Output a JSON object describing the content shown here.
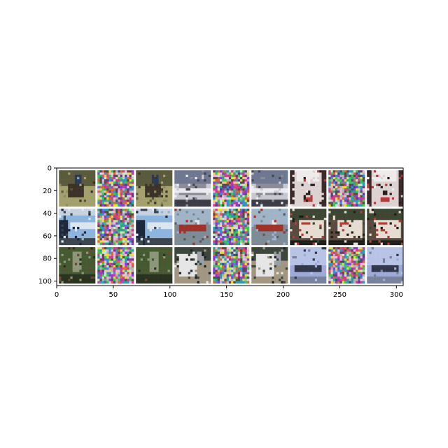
{
  "chart_data": {
    "type": "image_grid",
    "title": "",
    "xlabel": "",
    "ylabel": "",
    "xlim": [
      0,
      306
    ],
    "ylim": [
      104,
      0
    ],
    "x_ticks": [
      0,
      50,
      100,
      150,
      200,
      250,
      300
    ],
    "y_ticks": [
      0,
      20,
      40,
      60,
      80,
      100
    ],
    "grid": false,
    "grid_shape": {
      "rows": 3,
      "cols": 9
    },
    "cell_size": 32,
    "cell_padding": 2,
    "rows": [
      [
        {
          "kind": "photo",
          "subject": "horse-rider",
          "palette": [
            "#8c8c64",
            "#a3a06e",
            "#5a5a3c",
            "#3c3228"
          ]
        },
        {
          "kind": "noise"
        },
        {
          "kind": "photo",
          "subject": "horse-rider",
          "palette": [
            "#8c8c64",
            "#a3a06e",
            "#5a5a3c",
            "#3c3228"
          ]
        },
        {
          "kind": "photo",
          "subject": "fighter-jet",
          "palette": [
            "#c8c8d0",
            "#8c8c96",
            "#464650",
            "#ebebf0"
          ]
        },
        {
          "kind": "noise"
        },
        {
          "kind": "photo",
          "subject": "fighter-jet",
          "palette": [
            "#c8c8d0",
            "#8c8c96",
            "#464650",
            "#ebebf0"
          ]
        },
        {
          "kind": "photo",
          "subject": "white-dog",
          "palette": [
            "#f0ebeb",
            "#dcd2d2",
            "#281e1e",
            "#b43c3c"
          ]
        },
        {
          "kind": "noise"
        },
        {
          "kind": "photo",
          "subject": "white-dog",
          "palette": [
            "#f0ebeb",
            "#dcd2d2",
            "#281e1e",
            "#b43c3c"
          ]
        }
      ],
      [
        {
          "kind": "photo",
          "subject": "bus",
          "palette": [
            "#8cb4dc",
            "#1e283c",
            "#dce6f0",
            "#3c4650"
          ]
        },
        {
          "kind": "noise"
        },
        {
          "kind": "photo",
          "subject": "bus",
          "palette": [
            "#8cb4dc",
            "#1e283c",
            "#dce6f0",
            "#3c4650"
          ]
        },
        {
          "kind": "photo",
          "subject": "ship",
          "palette": [
            "#a0b4c8",
            "#7d8c96",
            "#a03228",
            "#5a5a5a"
          ]
        },
        {
          "kind": "noise"
        },
        {
          "kind": "photo",
          "subject": "ship",
          "palette": [
            "#a0b4c8",
            "#7d8c96",
            "#a03228",
            "#5a5a5a"
          ]
        },
        {
          "kind": "photo",
          "subject": "truck",
          "palette": [
            "#3c4632",
            "#e6dcd2",
            "#b43c32",
            "#1e1e19"
          ]
        },
        {
          "kind": "photo",
          "subject": "truck",
          "palette": [
            "#3c4632",
            "#e6dcd2",
            "#b43c32",
            "#1e1e19"
          ]
        },
        {
          "kind": "photo",
          "subject": "truck",
          "palette": [
            "#3c4632",
            "#e6dcd2",
            "#b43c32",
            "#1e1e19"
          ]
        }
      ],
      [
        {
          "kind": "photo",
          "subject": "frog",
          "palette": [
            "#465a32",
            "#8c9678",
            "#6e4632",
            "#28321e"
          ]
        },
        {
          "kind": "noise"
        },
        {
          "kind": "photo",
          "subject": "frog",
          "palette": [
            "#465a32",
            "#8c9678",
            "#6e4632",
            "#28321e"
          ]
        },
        {
          "kind": "photo",
          "subject": "white-horse",
          "palette": [
            "#3c463c",
            "#e6e6e6",
            "#a09682",
            "#1e2328"
          ]
        },
        {
          "kind": "noise"
        },
        {
          "kind": "photo",
          "subject": "white-horse",
          "palette": [
            "#3c463c",
            "#e6e6e6",
            "#a09682",
            "#1e2328"
          ]
        },
        {
          "kind": "photo",
          "subject": "airplane",
          "palette": [
            "#a0aad7",
            "#b9c3e6",
            "#32374b",
            "#78829b"
          ]
        },
        {
          "kind": "noise"
        },
        {
          "kind": "photo",
          "subject": "airplane",
          "palette": [
            "#a0aad7",
            "#b9c3e6",
            "#32374b",
            "#78829b"
          ]
        }
      ]
    ]
  }
}
